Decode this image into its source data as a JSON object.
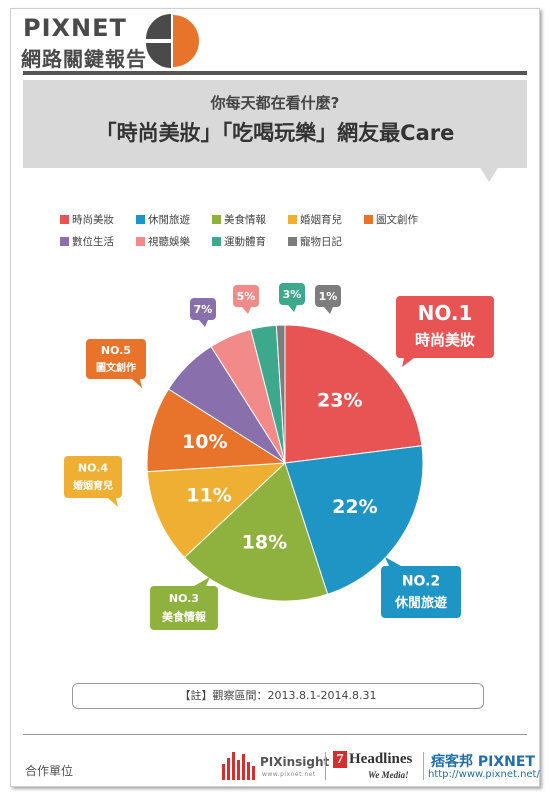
{
  "brand": {
    "name_en": "PIXNET",
    "name_zh": "網路關鍵報告"
  },
  "banner": {
    "question": "你每天都在看什麼?",
    "title": "「時尚美妝」「吃喝玩樂」網友最Care"
  },
  "colors": {
    "header_gray": "#555555",
    "banner_gray": "#d9d9d9",
    "accent_orange": "#ef6a2c"
  },
  "chart_data": {
    "type": "pie",
    "unit": "%",
    "categories": [
      "時尚美妝",
      "休閒旅遊",
      "美食情報",
      "婚姻育兒",
      "圖文創作",
      "數位生活",
      "視聽娛樂",
      "運動體育",
      "寵物日記"
    ],
    "values": [
      23,
      22,
      18,
      11,
      10,
      7,
      5,
      3,
      1
    ],
    "colors": [
      "#e85454",
      "#1f95c6",
      "#8fb23f",
      "#efaf33",
      "#e8732a",
      "#8a6fad",
      "#f38a8a",
      "#3ea88d",
      "#7d7d7d"
    ],
    "value_labels": [
      "23%",
      "22%",
      "18%",
      "11%",
      "10%",
      "7%",
      "5%",
      "3%",
      "1%"
    ],
    "rank_badges": [
      {
        "rank": "NO.1",
        "category": "時尚美妝"
      },
      {
        "rank": "NO.2",
        "category": "休閒旅遊"
      },
      {
        "rank": "NO.3",
        "category": "美食情報"
      },
      {
        "rank": "NO.4",
        "category": "婚姻育兒"
      },
      {
        "rank": "NO.5",
        "category": "圖文創作"
      }
    ],
    "legend_position": "top"
  },
  "note": "【註】觀察區間：2013.8.1-2014.8.31",
  "footer": {
    "partner_label": "合作單位",
    "pixinsight": "PIXinsight",
    "pixinsight_url": "www.pixnet.net",
    "headlines": "Headlines",
    "headlines_num": "7",
    "headlines_tag": "We Media!",
    "pixnet": "痞客邦 PIXNET",
    "pixnet_url": "http://www.pixnet.net/"
  }
}
